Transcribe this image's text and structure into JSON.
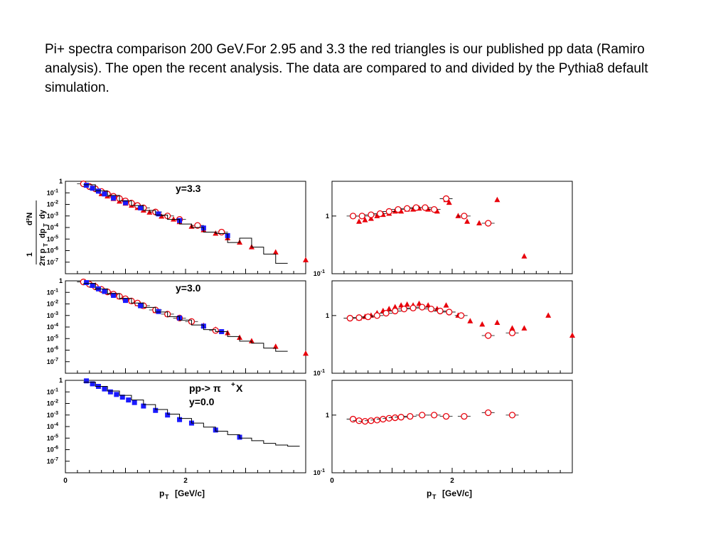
{
  "caption": "Pi+ spectra comparison 200 GeV.For 2.95 and 3.3 the red  triangles  is our published pp data (Ramiro analysis). The open the recent analysis. The data are compared to and divided by the Pythia8 default simulation.",
  "colors": {
    "published": "#e8000b",
    "recent": "#e8000b",
    "star": "#1a1aff",
    "frame": "#000000",
    "simulation": "#000000"
  },
  "labels": {
    "y_title_numer_left": "1",
    "y_title_numer_right": "d²N",
    "y_title_denom_left": "2π p",
    "y_title_denom_sub": "T",
    "y_title_denom_right": "dp",
    "y_title_denom_right_sub": "T",
    "y_title_denom_end": "dy",
    "xlabel_main": "p",
    "xlabel_sub": "T",
    "xlabel_unit": "[GeV/c]",
    "panel_ann_1": "y=3.3",
    "panel_ann_2": "y=3.0",
    "panel_ann_3a": "pp-> π",
    "panel_ann_3a_sup": "+",
    "panel_ann_3a_end": "X",
    "panel_ann_3b": "y=0.0"
  },
  "chart_data": [
    {
      "type": "scatter",
      "ylog": true,
      "xlim": [
        0,
        4
      ],
      "ylim": [
        1e-08,
        1
      ],
      "yticks": [
        {
          "v": 1,
          "base": "1",
          "exp": ""
        },
        {
          "v": 0.1,
          "base": "10",
          "exp": "-1"
        },
        {
          "v": 0.01,
          "base": "10",
          "exp": "-2"
        },
        {
          "v": 0.001,
          "base": "10",
          "exp": "-3"
        },
        {
          "v": 0.0001,
          "base": "10",
          "exp": "-4"
        },
        {
          "v": 1e-05,
          "base": "10",
          "exp": "-5"
        },
        {
          "v": 1e-06,
          "base": "10",
          "exp": "-6"
        },
        {
          "v": 1e-07,
          "base": "10",
          "exp": "-7"
        }
      ],
      "annotation": "y=3.3",
      "series": [
        {
          "role": "published",
          "marker": "triangle",
          "x": [
            0.6,
            0.7,
            0.8,
            0.9,
            1.0,
            1.1,
            1.2,
            1.3,
            1.4,
            1.6,
            1.8,
            1.9,
            2.1,
            2.3,
            2.5,
            2.7,
            2.9,
            3.1,
            3.5,
            4.0
          ],
          "y": [
            0.08,
            0.05,
            0.03,
            0.018,
            0.012,
            0.008,
            0.005,
            0.003,
            0.002,
            0.0009,
            0.0005,
            0.0003,
            0.00012,
            6e-05,
            3e-05,
            1.2e-05,
            5e-06,
            2e-06,
            7e-07,
            1.5e-07
          ]
        },
        {
          "role": "recent",
          "marker": "circle",
          "x": [
            0.3,
            0.4,
            0.5,
            0.6,
            0.7,
            0.8,
            0.9,
            1.0,
            1.1,
            1.2,
            1.3,
            1.5,
            1.7,
            1.9,
            2.2,
            2.6
          ],
          "y": [
            0.6,
            0.35,
            0.22,
            0.13,
            0.08,
            0.05,
            0.032,
            0.02,
            0.013,
            0.008,
            0.005,
            0.0022,
            0.001,
            0.0005,
            0.00015,
            4e-05
          ]
        },
        {
          "role": "star",
          "marker": "square",
          "x": [
            0.35,
            0.45,
            0.55,
            0.65,
            0.8,
            1.0,
            1.25,
            1.55,
            1.9,
            2.3,
            2.7
          ],
          "y": [
            0.45,
            0.25,
            0.14,
            0.08,
            0.035,
            0.014,
            0.005,
            0.0015,
            0.0004,
            9e-05,
            2e-05
          ]
        },
        {
          "role": "simulation",
          "marker": "histogram",
          "x": [
            0.3,
            0.5,
            0.7,
            0.9,
            1.1,
            1.3,
            1.5,
            1.7,
            1.9,
            2.1,
            2.3,
            2.5,
            2.7,
            2.9,
            3.1,
            3.3,
            3.5
          ],
          "y": [
            0.5,
            0.15,
            0.06,
            0.02,
            0.008,
            0.003,
            0.0012,
            0.0005,
            0.0002,
            0.0001,
            4e-05,
            3e-05,
            5e-06,
            1.2e-05,
            2e-06,
            5e-07,
            8e-08
          ]
        }
      ]
    },
    {
      "type": "scatter",
      "ylog": true,
      "xlim": [
        0,
        4
      ],
      "ylim": [
        0.1,
        4
      ],
      "yticks": [
        {
          "v": 1,
          "base": "1",
          "exp": ""
        },
        {
          "v": 0.1,
          "base": "10",
          "exp": "-1"
        }
      ],
      "series": [
        {
          "role": "published",
          "marker": "triangle",
          "x": [
            0.45,
            0.55,
            0.65,
            0.75,
            0.85,
            0.95,
            1.05,
            1.15,
            1.25,
            1.35,
            1.45,
            1.6,
            1.75,
            1.9,
            1.95,
            2.1,
            2.25,
            2.45,
            2.75,
            3.2
          ],
          "y": [
            0.8,
            0.85,
            0.9,
            1.0,
            1.05,
            1.1,
            1.2,
            1.2,
            1.3,
            1.3,
            1.35,
            1.3,
            1.2,
            1.9,
            1.7,
            1.0,
            0.8,
            0.75,
            1.9,
            0.2
          ]
        },
        {
          "role": "recent",
          "marker": "circle",
          "x": [
            0.35,
            0.5,
            0.65,
            0.8,
            0.95,
            1.1,
            1.25,
            1.4,
            1.55,
            1.7,
            1.9,
            2.2,
            2.6
          ],
          "y": [
            1.0,
            1.0,
            1.05,
            1.1,
            1.2,
            1.3,
            1.35,
            1.4,
            1.4,
            1.3,
            2.0,
            1.0,
            0.75
          ]
        }
      ]
    },
    {
      "type": "scatter",
      "ylog": true,
      "xlim": [
        0,
        4
      ],
      "ylim": [
        1e-08,
        1
      ],
      "yticks": [
        {
          "v": 1,
          "base": "1",
          "exp": ""
        },
        {
          "v": 0.1,
          "base": "10",
          "exp": "-1"
        },
        {
          "v": 0.01,
          "base": "10",
          "exp": "-2"
        },
        {
          "v": 0.001,
          "base": "10",
          "exp": "-3"
        },
        {
          "v": 0.0001,
          "base": "10",
          "exp": "-4"
        },
        {
          "v": 1e-05,
          "base": "10",
          "exp": "-5"
        },
        {
          "v": 1e-06,
          "base": "10",
          "exp": "-6"
        },
        {
          "v": 1e-07,
          "base": "10",
          "exp": "-7"
        }
      ],
      "annotation": "y=3.0",
      "series": [
        {
          "role": "published",
          "marker": "triangle",
          "x": [
            0.5,
            0.6,
            0.7,
            0.8,
            0.9,
            1.0,
            1.1,
            1.2,
            1.3,
            1.5,
            1.7,
            1.9,
            2.1,
            2.3,
            2.5,
            2.7,
            2.9,
            3.1,
            3.5,
            4.0
          ],
          "y": [
            0.4,
            0.2,
            0.12,
            0.07,
            0.04,
            0.025,
            0.016,
            0.01,
            0.006,
            0.0025,
            0.0012,
            0.0006,
            0.0003,
            0.00013,
            6e-05,
            3e-05,
            1.2e-05,
            6e-06,
            2e-06,
            5e-07
          ]
        },
        {
          "role": "recent",
          "marker": "circle",
          "x": [
            0.3,
            0.4,
            0.5,
            0.6,
            0.7,
            0.8,
            0.9,
            1.0,
            1.1,
            1.2,
            1.3,
            1.5,
            1.7,
            1.9,
            2.1,
            2.5
          ],
          "y": [
            0.8,
            0.5,
            0.3,
            0.18,
            0.11,
            0.07,
            0.045,
            0.028,
            0.018,
            0.012,
            0.007,
            0.003,
            0.0013,
            0.0006,
            0.0003,
            5e-05
          ]
        },
        {
          "role": "star",
          "marker": "square",
          "x": [
            0.35,
            0.45,
            0.55,
            0.65,
            0.8,
            1.0,
            1.25,
            1.55,
            1.9,
            2.3,
            2.6
          ],
          "y": [
            0.7,
            0.4,
            0.2,
            0.12,
            0.055,
            0.02,
            0.007,
            0.0022,
            0.0006,
            0.00012,
            4e-05
          ]
        },
        {
          "role": "simulation",
          "marker": "histogram",
          "x": [
            0.3,
            0.5,
            0.7,
            0.9,
            1.1,
            1.3,
            1.5,
            1.7,
            1.9,
            2.1,
            2.3,
            2.5,
            2.7,
            2.9,
            3.1,
            3.3,
            3.5
          ],
          "y": [
            0.6,
            0.2,
            0.08,
            0.03,
            0.012,
            0.005,
            0.002,
            0.0008,
            0.0004,
            0.00015,
            6e-05,
            4e-05,
            1.5e-05,
            6e-06,
            4e-06,
            1.5e-06,
            8e-07
          ]
        }
      ]
    },
    {
      "type": "scatter",
      "ylog": true,
      "xlim": [
        0,
        4
      ],
      "ylim": [
        0.1,
        4
      ],
      "yticks": [
        {
          "v": 1,
          "base": "1",
          "exp": ""
        },
        {
          "v": 0.1,
          "base": "10",
          "exp": "-1"
        }
      ],
      "series": [
        {
          "role": "published",
          "marker": "triangle",
          "x": [
            0.45,
            0.55,
            0.65,
            0.75,
            0.85,
            0.95,
            1.05,
            1.15,
            1.25,
            1.35,
            1.45,
            1.6,
            1.75,
            1.9,
            2.1,
            2.3,
            2.5,
            2.75,
            3.0,
            3.2,
            3.6,
            4.0
          ],
          "y": [
            0.9,
            0.95,
            1.0,
            1.1,
            1.2,
            1.3,
            1.4,
            1.5,
            1.55,
            1.5,
            1.6,
            1.5,
            1.3,
            1.5,
            1.0,
            0.8,
            0.7,
            0.75,
            0.6,
            0.6,
            1.0,
            0.45
          ]
        },
        {
          "role": "recent",
          "marker": "circle",
          "x": [
            0.3,
            0.45,
            0.6,
            0.75,
            0.9,
            1.05,
            1.2,
            1.35,
            1.5,
            1.65,
            1.8,
            1.95,
            2.15,
            2.6,
            3.0
          ],
          "y": [
            0.9,
            0.92,
            0.95,
            1.0,
            1.1,
            1.2,
            1.3,
            1.35,
            1.4,
            1.3,
            1.2,
            1.15,
            1.0,
            0.45,
            0.5
          ]
        }
      ]
    },
    {
      "type": "scatter",
      "ylog": true,
      "xlim": [
        0,
        4
      ],
      "ylim": [
        1e-08,
        1
      ],
      "yticks": [
        {
          "v": 1,
          "base": "1",
          "exp": ""
        },
        {
          "v": 0.1,
          "base": "10",
          "exp": "-1"
        },
        {
          "v": 0.01,
          "base": "10",
          "exp": "-2"
        },
        {
          "v": 0.001,
          "base": "10",
          "exp": "-3"
        },
        {
          "v": 0.0001,
          "base": "10",
          "exp": "-4"
        },
        {
          "v": 1e-05,
          "base": "10",
          "exp": "-5"
        },
        {
          "v": 1e-06,
          "base": "10",
          "exp": "-6"
        },
        {
          "v": 1e-07,
          "base": "10",
          "exp": "-7"
        }
      ],
      "xticks": [
        {
          "v": 0,
          "label": "0"
        },
        {
          "v": 2,
          "label": "2"
        }
      ],
      "annotation": "pp-> π+X y=0.0",
      "series": [
        {
          "role": "star",
          "marker": "square",
          "x": [
            0.35,
            0.45,
            0.55,
            0.65,
            0.75,
            0.85,
            0.95,
            1.05,
            1.15,
            1.3,
            1.5,
            1.7,
            1.9,
            2.1,
            2.5,
            2.9
          ],
          "y": [
            0.9,
            0.5,
            0.3,
            0.18,
            0.1,
            0.06,
            0.035,
            0.02,
            0.012,
            0.006,
            0.0025,
            0.001,
            0.0004,
            0.0002,
            5e-05,
            1.2e-05
          ]
        },
        {
          "role": "simulation",
          "marker": "histogram",
          "x": [
            0.3,
            0.5,
            0.7,
            0.9,
            1.1,
            1.3,
            1.5,
            1.7,
            1.9,
            2.1,
            2.3,
            2.5,
            2.7,
            2.9,
            3.1,
            3.3,
            3.5,
            3.7
          ],
          "y": [
            0.7,
            0.3,
            0.12,
            0.05,
            0.02,
            0.008,
            0.003,
            0.0012,
            0.0005,
            0.0002,
            9e-05,
            4e-05,
            2e-05,
            1e-05,
            6e-06,
            3.5e-06,
            2.5e-06,
            2e-06
          ]
        }
      ]
    },
    {
      "type": "scatter",
      "ylog": true,
      "xlim": [
        0,
        4
      ],
      "ylim": [
        0.1,
        4
      ],
      "yticks": [
        {
          "v": 1,
          "base": "1",
          "exp": ""
        },
        {
          "v": 0.1,
          "base": "10",
          "exp": "-1"
        }
      ],
      "xticks": [
        {
          "v": 0,
          "label": "0"
        },
        {
          "v": 2,
          "label": "2"
        }
      ],
      "series": [
        {
          "role": "recent",
          "marker": "circle",
          "x": [
            0.35,
            0.45,
            0.55,
            0.65,
            0.75,
            0.85,
            0.95,
            1.05,
            1.15,
            1.3,
            1.5,
            1.7,
            1.9,
            2.2,
            2.6,
            3.0
          ],
          "y": [
            0.85,
            0.8,
            0.78,
            0.8,
            0.82,
            0.85,
            0.88,
            0.9,
            0.92,
            0.95,
            1.0,
            1.0,
            0.95,
            0.95,
            1.1,
            1.0
          ]
        }
      ]
    }
  ]
}
